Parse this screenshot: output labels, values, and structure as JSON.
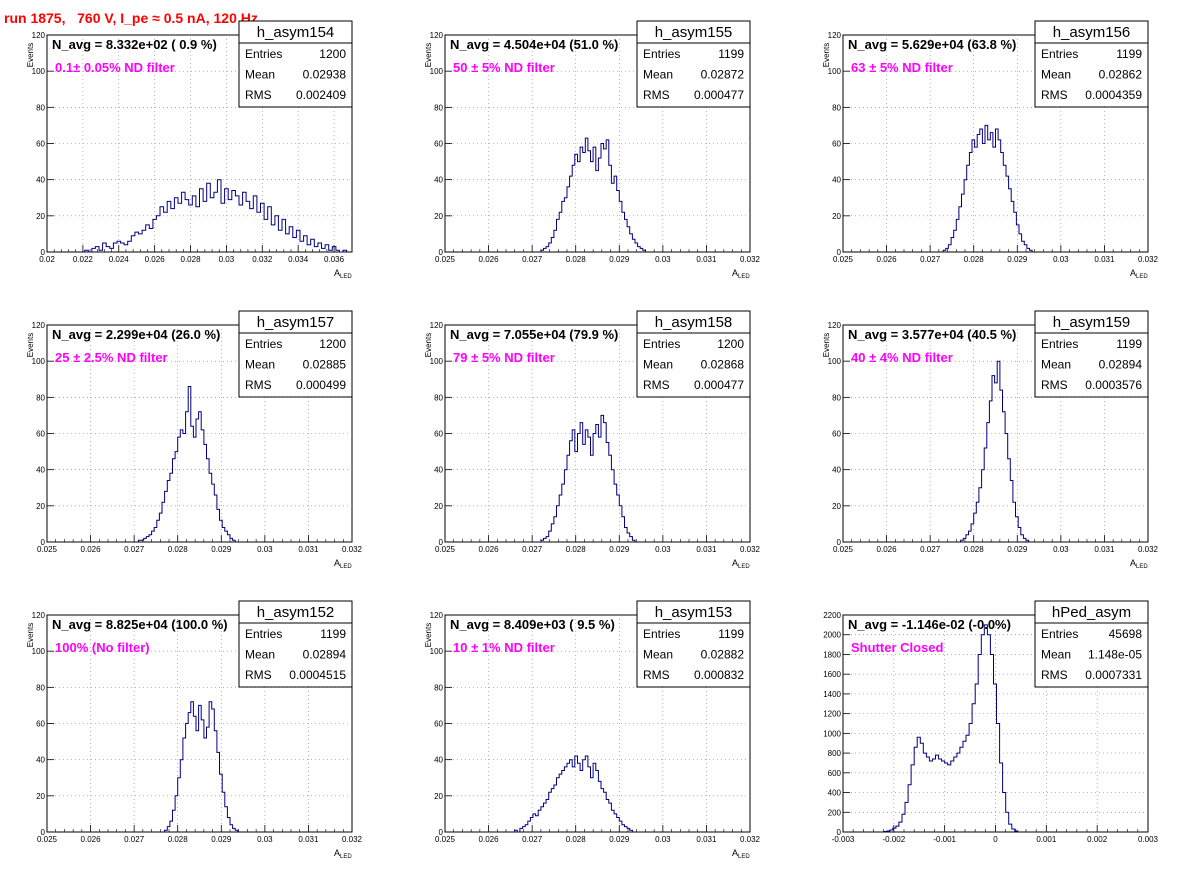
{
  "header": {
    "run_title": "run 1875,   760 V, I_pe ≈ 0.5 nA, 120 Hz"
  },
  "colors": {
    "histogram_line": "#000080",
    "annotation": "#ff00ff",
    "title": "#ff0000",
    "grid": "#888888"
  },
  "chart_data": [
    {
      "type": "bar",
      "name": "h_asym154",
      "nav_text": "N_avg = 8.332e+02 ( 0.9 %)",
      "filter_text": "0.1± 0.05% ND filter",
      "stats": {
        "entries": "1200",
        "mean": "0.02938",
        "rms": "0.002409"
      },
      "stat_labels": [
        "Entries",
        "Mean",
        "RMS"
      ],
      "xlabel": "A_LED",
      "ylabel": "Events",
      "xlim": [
        0.02,
        0.037
      ],
      "ylim": [
        0,
        120
      ],
      "xticks": [
        "0.02",
        "0.022",
        "0.024",
        "0.026",
        "0.028",
        "0.03",
        "0.032",
        "0.034",
        "0.036"
      ],
      "yticks": [
        "0",
        "20",
        "40",
        "60",
        "80",
        "100",
        "120"
      ],
      "grid": true,
      "bin_start": 0.0221,
      "bin_width": 0.0002,
      "values": [
        1,
        0,
        2,
        3,
        1,
        5,
        3,
        2,
        5,
        6,
        5,
        4,
        6,
        9,
        11,
        10,
        12,
        15,
        13,
        18,
        20,
        25,
        22,
        28,
        24,
        30,
        27,
        33,
        29,
        26,
        31,
        25,
        35,
        28,
        38,
        30,
        33,
        40,
        27,
        35,
        29,
        34,
        31,
        26,
        33,
        28,
        24,
        31,
        22,
        27,
        18,
        25,
        15,
        20,
        12,
        18,
        10,
        14,
        8,
        12,
        6,
        9,
        4,
        7,
        3,
        5,
        2,
        4,
        1,
        3,
        1,
        0,
        1
      ]
    },
    {
      "type": "bar",
      "name": "h_asym155",
      "nav_text": "N_avg = 4.504e+04 (51.0 %)",
      "filter_text": "50 ± 5% ND filter",
      "stats": {
        "entries": "1199",
        "mean": "0.02872",
        "rms": "0.000477"
      },
      "stat_labels": [
        "Entries",
        "Mean",
        "RMS"
      ],
      "xlabel": "A_LED",
      "ylabel": "Events",
      "xlim": [
        0.025,
        0.032
      ],
      "ylim": [
        0,
        120
      ],
      "xticks": [
        "0.025",
        "0.026",
        "0.027",
        "0.028",
        "0.029",
        "0.03",
        "0.031",
        "0.032"
      ],
      "yticks": [
        "0",
        "20",
        "40",
        "60",
        "80",
        "100",
        "120"
      ],
      "grid": true,
      "bin_start": 0.0272,
      "bin_width": 6e-05,
      "values": [
        1,
        2,
        3,
        5,
        8,
        12,
        18,
        22,
        28,
        30,
        36,
        42,
        48,
        54,
        50,
        58,
        55,
        63,
        56,
        50,
        58,
        45,
        52,
        60,
        57,
        62,
        48,
        38,
        42,
        34,
        28,
        22,
        18,
        14,
        10,
        7,
        5,
        3,
        2,
        1
      ]
    },
    {
      "type": "bar",
      "name": "h_asym156",
      "nav_text": "N_avg = 5.629e+04 (63.8 %)",
      "filter_text": "63 ± 5% ND filter",
      "stats": {
        "entries": "1199",
        "mean": "0.02862",
        "rms": "0.0004359"
      },
      "stat_labels": [
        "Entries",
        "Mean",
        "RMS"
      ],
      "xlabel": "A_LED",
      "ylabel": "Events",
      "xlim": [
        0.025,
        0.032
      ],
      "ylim": [
        0,
        120
      ],
      "xticks": [
        "0.025",
        "0.026",
        "0.027",
        "0.028",
        "0.029",
        "0.03",
        "0.031",
        "0.032"
      ],
      "yticks": [
        "0",
        "20",
        "40",
        "60",
        "80",
        "100",
        "120"
      ],
      "grid": true,
      "bin_start": 0.0273,
      "bin_width": 6e-05,
      "values": [
        1,
        2,
        4,
        8,
        12,
        18,
        25,
        32,
        40,
        48,
        55,
        62,
        58,
        65,
        68,
        60,
        70,
        62,
        66,
        58,
        68,
        62,
        55,
        48,
        42,
        35,
        28,
        22,
        15,
        10,
        6,
        4,
        2,
        1
      ]
    },
    {
      "type": "bar",
      "name": "h_asym157",
      "nav_text": "N_avg = 2.299e+04 (26.0 %)",
      "filter_text": "25 ± 2.5% ND filter",
      "stats": {
        "entries": "1200",
        "mean": "0.02885",
        "rms": "0.000499"
      },
      "stat_labels": [
        "Entries",
        "Mean",
        "RMS"
      ],
      "xlabel": "A_LED",
      "ylabel": "Events",
      "xlim": [
        0.025,
        0.032
      ],
      "ylim": [
        0,
        120
      ],
      "xticks": [
        "0.025",
        "0.026",
        "0.027",
        "0.028",
        "0.029",
        "0.03",
        "0.031",
        "0.032"
      ],
      "yticks": [
        "0",
        "20",
        "40",
        "60",
        "80",
        "100",
        "120"
      ],
      "grid": true,
      "bin_start": 0.0271,
      "bin_width": 6e-05,
      "values": [
        1,
        1,
        2,
        3,
        4,
        6,
        8,
        12,
        16,
        22,
        28,
        34,
        38,
        46,
        50,
        58,
        62,
        60,
        72,
        86,
        64,
        58,
        68,
        72,
        62,
        54,
        46,
        38,
        32,
        26,
        18,
        12,
        8,
        6,
        4,
        2,
        1
      ]
    },
    {
      "type": "bar",
      "name": "h_asym158",
      "nav_text": "N_avg = 7.055e+04 (79.9 %)",
      "filter_text": "79 ± 5% ND filter",
      "stats": {
        "entries": "1200",
        "mean": "0.02868",
        "rms": "0.000477"
      },
      "stat_labels": [
        "Entries",
        "Mean",
        "RMS"
      ],
      "xlabel": "A_LED",
      "ylabel": "Events",
      "xlim": [
        0.025,
        0.032
      ],
      "ylim": [
        0,
        120
      ],
      "xticks": [
        "0.025",
        "0.026",
        "0.027",
        "0.028",
        "0.029",
        "0.03",
        "0.031",
        "0.032"
      ],
      "yticks": [
        "0",
        "20",
        "40",
        "60",
        "80",
        "100",
        "120"
      ],
      "grid": true,
      "bin_start": 0.0272,
      "bin_width": 6e-05,
      "values": [
        1,
        2,
        3,
        6,
        10,
        14,
        20,
        26,
        32,
        40,
        48,
        56,
        62,
        50,
        60,
        66,
        54,
        62,
        58,
        48,
        60,
        65,
        58,
        70,
        66,
        55,
        48,
        40,
        32,
        26,
        20,
        14,
        8,
        5,
        3,
        1
      ]
    },
    {
      "type": "bar",
      "name": "h_asym159",
      "nav_text": "N_avg = 3.577e+04 (40.5 %)",
      "filter_text": "40 ± 4% ND filter",
      "stats": {
        "entries": "1199",
        "mean": "0.02894",
        "rms": "0.0003576"
      },
      "stat_labels": [
        "Entries",
        "Mean",
        "RMS"
      ],
      "xlabel": "A_LED",
      "ylabel": "Events",
      "xlim": [
        0.025,
        0.032
      ],
      "ylim": [
        0,
        120
      ],
      "xticks": [
        "0.025",
        "0.026",
        "0.027",
        "0.028",
        "0.029",
        "0.03",
        "0.031",
        "0.032"
      ],
      "yticks": [
        "0",
        "20",
        "40",
        "60",
        "80",
        "100",
        "120"
      ],
      "grid": true,
      "bin_start": 0.0277,
      "bin_width": 6e-05,
      "values": [
        1,
        2,
        4,
        6,
        10,
        16,
        22,
        30,
        40,
        52,
        66,
        78,
        92,
        88,
        100,
        84,
        72,
        60,
        46,
        34,
        22,
        14,
        8,
        4,
        2,
        1
      ]
    },
    {
      "type": "bar",
      "name": "h_asym152",
      "nav_text": "N_avg = 8.825e+04 (100.0 %)",
      "filter_text": "100% (No filter)",
      "stats": {
        "entries": "1199",
        "mean": "0.02894",
        "rms": "0.0004515"
      },
      "stat_labels": [
        "Entries",
        "Mean",
        "RMS"
      ],
      "xlabel": "A_LED",
      "ylabel": "Events",
      "xlim": [
        0.025,
        0.032
      ],
      "ylim": [
        0,
        120
      ],
      "xticks": [
        "0.025",
        "0.026",
        "0.027",
        "0.028",
        "0.029",
        "0.03",
        "0.031",
        "0.032"
      ],
      "yticks": [
        "0",
        "20",
        "40",
        "60",
        "80",
        "100",
        "120"
      ],
      "grid": true,
      "bin_start": 0.0277,
      "bin_width": 6e-05,
      "values": [
        1,
        3,
        6,
        12,
        20,
        30,
        40,
        52,
        60,
        66,
        72,
        64,
        56,
        70,
        62,
        52,
        58,
        72,
        68,
        56,
        44,
        32,
        22,
        14,
        8,
        4,
        2,
        1
      ]
    },
    {
      "type": "bar",
      "name": "h_asym153",
      "nav_text": "N_avg = 8.409e+03 ( 9.5 %)",
      "filter_text": "10 ± 1% ND filter",
      "stats": {
        "entries": "1199",
        "mean": "0.02882",
        "rms": "0.000832"
      },
      "stat_labels": [
        "Entries",
        "Mean",
        "RMS"
      ],
      "xlabel": "A_LED",
      "ylabel": "Events",
      "xlim": [
        0.025,
        0.032
      ],
      "ylim": [
        0,
        120
      ],
      "xticks": [
        "0.025",
        "0.026",
        "0.027",
        "0.028",
        "0.029",
        "0.03",
        "0.031",
        "0.032"
      ],
      "yticks": [
        "0",
        "20",
        "40",
        "60",
        "80",
        "100",
        "120"
      ],
      "grid": true,
      "bin_start": 0.0266,
      "bin_width": 6e-05,
      "values": [
        1,
        0,
        2,
        3,
        4,
        6,
        8,
        10,
        9,
        12,
        14,
        16,
        18,
        22,
        24,
        26,
        30,
        32,
        34,
        36,
        38,
        40,
        36,
        42,
        38,
        34,
        40,
        42,
        36,
        30,
        38,
        34,
        28,
        24,
        22,
        18,
        16,
        12,
        10,
        8,
        6,
        4,
        3,
        2,
        1
      ]
    },
    {
      "type": "bar",
      "name": "hPed_asym",
      "nav_text": "N_avg = -1.146e-02 (-0.0%)",
      "filter_text": "Shutter Closed",
      "stats": {
        "entries": "45698",
        "mean": "1.148e-05",
        "rms": "0.0007331"
      },
      "stat_labels": [
        "Entries",
        "Mean",
        "RMS"
      ],
      "xlabel": "",
      "ylabel": "",
      "xlim": [
        -0.003,
        0.003
      ],
      "ylim": [
        0,
        2200
      ],
      "xticks": [
        "-0.003",
        "-0.002",
        "-0.001",
        "0",
        "0.001",
        "0.002",
        "0.003"
      ],
      "yticks": [
        "0",
        "200",
        "400",
        "600",
        "800",
        "1000",
        "1200",
        "1400",
        "1600",
        "1800",
        "2000",
        "2200"
      ],
      "grid": true,
      "bin_start": -0.0022,
      "bin_width": 6e-05,
      "values": [
        5,
        10,
        20,
        40,
        60,
        100,
        180,
        300,
        480,
        680,
        860,
        960,
        900,
        800,
        760,
        720,
        740,
        780,
        740,
        720,
        700,
        680,
        720,
        760,
        800,
        860,
        920,
        980,
        1100,
        1300,
        1500,
        1800,
        2000,
        2100,
        2000,
        1800,
        1500,
        1100,
        700,
        400,
        200,
        80,
        30,
        10
      ]
    }
  ]
}
